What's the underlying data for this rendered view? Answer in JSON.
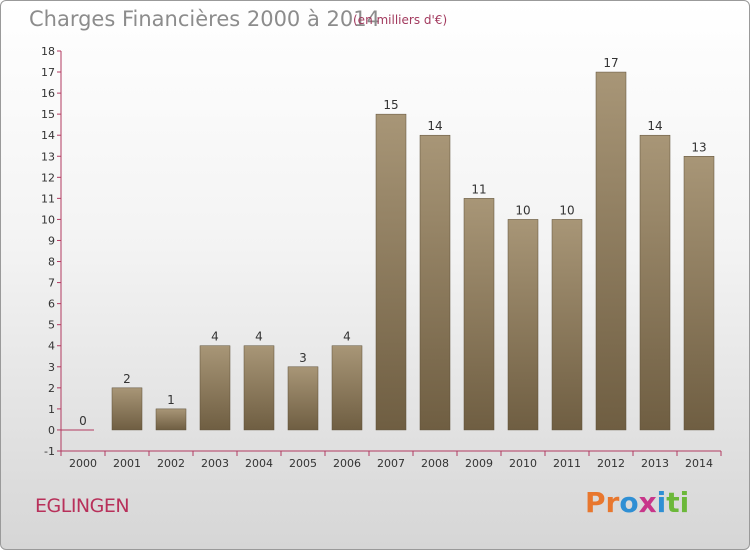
{
  "header": {
    "title": "Charges Financières 2000 à 2014",
    "subtitle": "(en milliers d'€)"
  },
  "footer": {
    "commune": "EGLINGEN",
    "logo_letters": [
      {
        "ch": "P",
        "color": "#e8772e"
      },
      {
        "ch": "r",
        "color": "#e8772e"
      },
      {
        "ch": "o",
        "color": "#2f8fd4"
      },
      {
        "ch": "x",
        "color": "#c8358a"
      },
      {
        "ch": "i",
        "color": "#2f8fd4"
      },
      {
        "ch": "t",
        "color": "#6cb83a"
      },
      {
        "ch": "i",
        "color": "#6cb83a"
      }
    ]
  },
  "chart_data": {
    "type": "bar",
    "categories": [
      "2000",
      "2001",
      "2002",
      "2003",
      "2004",
      "2005",
      "2006",
      "2007",
      "2008",
      "2009",
      "2010",
      "2011",
      "2012",
      "2013",
      "2014"
    ],
    "values": [
      0,
      2,
      1,
      4,
      4,
      3,
      4,
      15,
      14,
      11,
      10,
      10,
      17,
      14,
      13
    ],
    "data_labels": [
      "0",
      "2",
      "1",
      "4",
      "4",
      "3",
      "4",
      "15",
      "14",
      "11",
      "10",
      "10",
      "17",
      "14",
      "13"
    ],
    "yticks": [
      "-1",
      "0",
      "1",
      "2",
      "3",
      "4",
      "5",
      "6",
      "7",
      "8",
      "9",
      "10",
      "11",
      "12",
      "13",
      "14",
      "15",
      "16",
      "17",
      "18"
    ],
    "ylim": [
      -1,
      18
    ],
    "grid": false,
    "bar_color_top": "#a89677",
    "bar_color_bottom": "#6f5e42",
    "axis_color": "#b23a60"
  }
}
